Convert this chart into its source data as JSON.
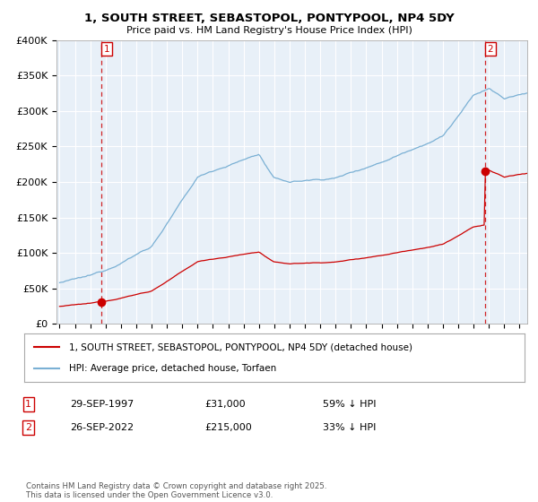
{
  "title": "1, SOUTH STREET, SEBASTOPOL, PONTYPOOL, NP4 5DY",
  "subtitle": "Price paid vs. HM Land Registry's House Price Index (HPI)",
  "sale1_date": 1997.75,
  "sale1_price": 31000,
  "sale1_label": "1",
  "sale2_date": 2022.75,
  "sale2_price": 215000,
  "sale2_label": "2",
  "ylim": [
    0,
    400000
  ],
  "xlim": [
    1994.8,
    2025.5
  ],
  "yticks": [
    0,
    50000,
    100000,
    150000,
    200000,
    250000,
    300000,
    350000,
    400000
  ],
  "ytick_labels": [
    "£0",
    "£50K",
    "£100K",
    "£150K",
    "£200K",
    "£250K",
    "£300K",
    "£350K",
    "£400K"
  ],
  "legend1": "1, SOUTH STREET, SEBASTOPOL, PONTYPOOL, NP4 5DY (detached house)",
  "legend2": "HPI: Average price, detached house, Torfaen",
  "table_row1": [
    "1",
    "29-SEP-1997",
    "£31,000",
    "59% ↓ HPI"
  ],
  "table_row2": [
    "2",
    "26-SEP-2022",
    "£215,000",
    "33% ↓ HPI"
  ],
  "footer": "Contains HM Land Registry data © Crown copyright and database right 2025.\nThis data is licensed under the Open Government Licence v3.0.",
  "hpi_color": "#7ab0d4",
  "sale_color": "#cc0000",
  "bg_plot": "#e8f0f8",
  "background_color": "#ffffff",
  "grid_color": "#ffffff"
}
